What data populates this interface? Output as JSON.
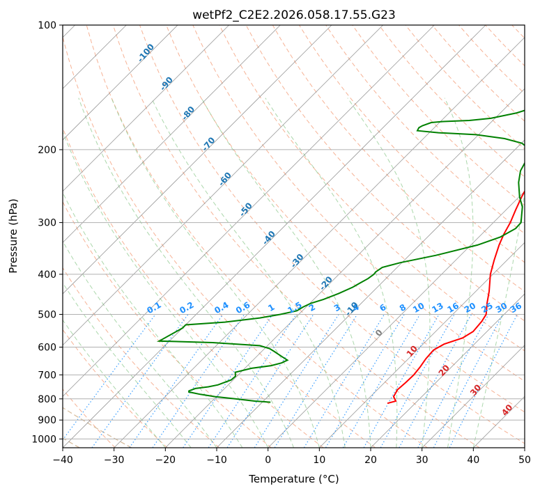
{
  "chart_data": {
    "type": "line",
    "subtype": "skew-t log-p diagram",
    "title": "wetPf2_C2E2.2026.058.17.55.G23",
    "xlabel": "Temperature (°C)",
    "ylabel": "Pressure (hPa)",
    "xlim": [
      -40,
      50
    ],
    "ylim": [
      1050,
      100
    ],
    "yscale": "log",
    "grid": true,
    "x_ticks": [
      -40,
      -30,
      -20,
      -10,
      0,
      10,
      20,
      30,
      40,
      50
    ],
    "x_tick_labels": [
      "−40",
      "−30",
      "−20",
      "−10",
      "0",
      "10",
      "20",
      "30",
      "40",
      "50"
    ],
    "y_ticks": [
      1000,
      900,
      800,
      700,
      600,
      500,
      400,
      300,
      200,
      100
    ],
    "y_tick_labels": [
      "1000",
      "900",
      "800",
      "700",
      "600",
      "500",
      "400",
      "300",
      "200",
      "100"
    ],
    "series": [
      {
        "color": "#ff0000",
        "points": [
          [
            820,
            14.6
          ],
          [
            810,
            15.8
          ],
          [
            790,
            14.5
          ],
          [
            760,
            13.9
          ],
          [
            730,
            14.1
          ],
          [
            700,
            14.2
          ],
          [
            670,
            13.9
          ],
          [
            640,
            13.4
          ],
          [
            610,
            13.2
          ],
          [
            590,
            14.1
          ],
          [
            570,
            16.5
          ],
          [
            550,
            17.3
          ],
          [
            520,
            17.0
          ],
          [
            500,
            16.5
          ],
          [
            470,
            14.5
          ],
          [
            440,
            12.6
          ],
          [
            400,
            9.5
          ],
          [
            370,
            7.5
          ],
          [
            340,
            5.5
          ],
          [
            320,
            4.3
          ],
          [
            300,
            3.3
          ],
          [
            280,
            1.9
          ],
          [
            260,
            0.5
          ],
          [
            240,
            -0.8
          ],
          [
            225,
            -2.1
          ],
          [
            212,
            -3.1
          ],
          [
            205,
            -2.9
          ],
          [
            200,
            -1.5
          ],
          [
            195,
            1.5
          ],
          [
            188,
            6.0
          ],
          [
            180,
            9.0
          ],
          [
            172,
            9.7
          ],
          [
            165,
            9.3
          ],
          [
            158,
            8.2
          ],
          [
            150,
            7.3
          ],
          [
            142,
            7.5
          ],
          [
            135,
            8.8
          ],
          [
            128,
            10.1
          ],
          [
            120,
            11.8
          ],
          [
            112,
            12.7
          ],
          [
            105,
            12.9
          ],
          [
            100,
            13.4
          ]
        ]
      },
      {
        "color": "#008000",
        "points": [
          [
            815,
            -8.4
          ],
          [
            810,
            -11.7
          ],
          [
            800,
            -15.9
          ],
          [
            790,
            -20.3
          ],
          [
            780,
            -23.6
          ],
          [
            770,
            -26.3
          ],
          [
            765,
            -26.5
          ],
          [
            755,
            -25.7
          ],
          [
            748,
            -23.5
          ],
          [
            740,
            -22.0
          ],
          [
            720,
            -20.4
          ],
          [
            705,
            -20.3
          ],
          [
            690,
            -21.1
          ],
          [
            675,
            -18.7
          ],
          [
            665,
            -15.4
          ],
          [
            655,
            -13.9
          ],
          [
            645,
            -13.3
          ],
          [
            635,
            -14.7
          ],
          [
            625,
            -16.1
          ],
          [
            615,
            -17.5
          ],
          [
            605,
            -19.0
          ],
          [
            595,
            -21.5
          ],
          [
            585,
            -31.3
          ],
          [
            580,
            -42.0
          ],
          [
            540,
            -40.0
          ],
          [
            530,
            -40.0
          ],
          [
            522,
            -32.9
          ],
          [
            510,
            -26.9
          ],
          [
            500,
            -23.6
          ],
          [
            490,
            -21.1
          ],
          [
            480,
            -20.6
          ],
          [
            470,
            -19.8
          ],
          [
            460,
            -18.1
          ],
          [
            445,
            -16.3
          ],
          [
            430,
            -14.8
          ],
          [
            420,
            -14.2
          ],
          [
            410,
            -13.5
          ],
          [
            400,
            -13.2
          ],
          [
            395,
            -13.3
          ],
          [
            385,
            -12.9
          ],
          [
            375,
            -10.3
          ],
          [
            360,
            -4.8
          ],
          [
            340,
            1.3
          ],
          [
            325,
            4.2
          ],
          [
            310,
            5.5
          ],
          [
            300,
            5.4
          ],
          [
            290,
            4.3
          ],
          [
            275,
            2.6
          ],
          [
            260,
            0.1
          ],
          [
            240,
            -2.9
          ],
          [
            225,
            -4.8
          ],
          [
            210,
            -5.9
          ],
          [
            200,
            -7.0
          ],
          [
            193,
            -9.9
          ],
          [
            188,
            -14.2
          ],
          [
            184,
            -20.5
          ],
          [
            182,
            -28.2
          ],
          [
            180,
            -32.7
          ],
          [
            177,
            -33.0
          ],
          [
            175,
            -32.7
          ],
          [
            172,
            -31.6
          ],
          [
            171,
            -29.4
          ],
          [
            170,
            -24.6
          ],
          [
            168,
            -20.8
          ],
          [
            163,
            -16.8
          ],
          [
            157,
            -14.0
          ],
          [
            150,
            -12.4
          ],
          [
            140,
            -11.2
          ],
          [
            130,
            -9.6
          ],
          [
            122,
            -7.0
          ],
          [
            113,
            -4.9
          ],
          [
            105,
            -1.8
          ],
          [
            100,
            -0.1
          ]
        ]
      }
    ],
    "annotations": {
      "isotherm_labels": [
        {
          "t": -100,
          "text": "-100"
        },
        {
          "t": -90,
          "text": "-90"
        },
        {
          "t": -80,
          "text": "-80"
        },
        {
          "t": -70,
          "text": "-70"
        },
        {
          "t": -60,
          "text": "-60"
        },
        {
          "t": -50,
          "text": "-50"
        },
        {
          "t": -40,
          "text": "-40"
        },
        {
          "t": -30,
          "text": "-30"
        },
        {
          "t": -20,
          "text": "-20"
        },
        {
          "t": -10,
          "text": "-10"
        }
      ],
      "upper_isotherm_labels": [
        {
          "t": 0,
          "text": "0"
        },
        {
          "t": 10,
          "text": "10"
        },
        {
          "t": 20,
          "text": "20"
        },
        {
          "t": 30,
          "text": "30"
        },
        {
          "t": 40,
          "text": "40"
        }
      ],
      "mixing_ratio_labels": [
        "0.1",
        "0.2",
        "0.4",
        "0.6",
        "1",
        "1.5",
        "2",
        "3",
        "4",
        "6",
        "8",
        "10",
        "13",
        "16",
        "20",
        "25",
        "30",
        "36"
      ],
      "mixing_ratio_values": [
        0.1,
        0.2,
        0.4,
        0.6,
        1,
        1.5,
        2,
        3,
        4,
        6,
        8,
        10,
        13,
        16,
        20,
        25,
        30,
        36
      ],
      "mixing_ratio_label_pressure": 500
    },
    "colors": {
      "temperature": "#ff0000",
      "dewpoint": "#008000",
      "dry_adiabats": "#f4a582",
      "moist_adiabats": "#8fc98f",
      "mixing_ratio": "#1e90ff",
      "isotherms": "#808080",
      "grid": "#b0b0b0"
    }
  }
}
